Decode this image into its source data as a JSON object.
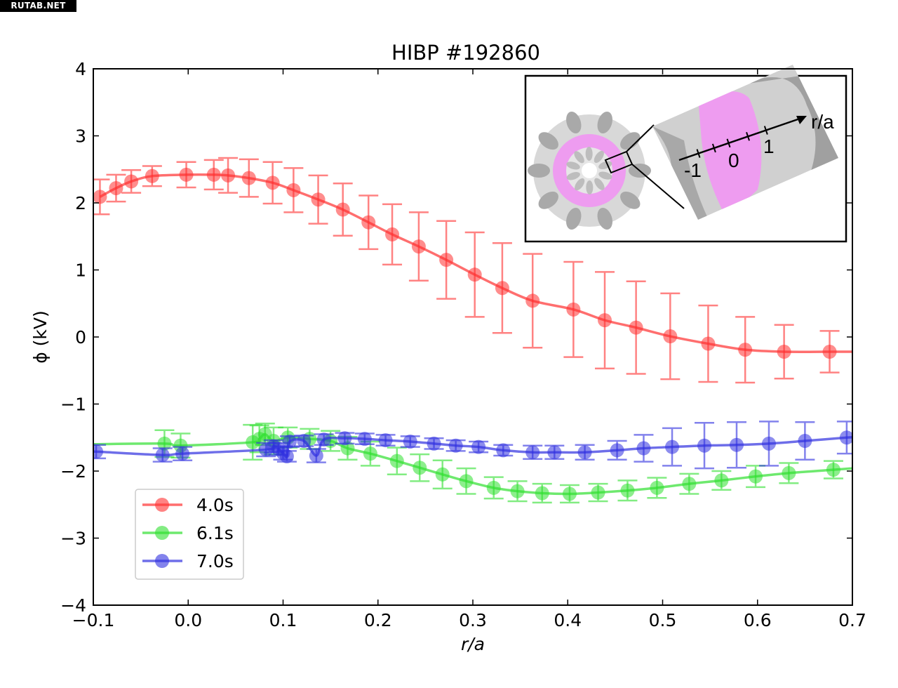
{
  "watermark": "RUTAB.NET",
  "chart_data": {
    "type": "line",
    "title": "HIBP #192860",
    "xlabel": "r/a",
    "ylabel": "ϕ (kV)",
    "xlim": [
      -0.1,
      0.7
    ],
    "ylim": [
      -4,
      4
    ],
    "xticks": [
      -0.1,
      0.0,
      0.1,
      0.2,
      0.3,
      0.4,
      0.5,
      0.6,
      0.7
    ],
    "xtick_labels": [
      "−0.1",
      "0.0",
      "0.1",
      "0.2",
      "0.3",
      "0.4",
      "0.5",
      "0.6",
      "0.7"
    ],
    "yticks": [
      -4,
      -3,
      -2,
      -1,
      0,
      1,
      2,
      3,
      4
    ],
    "ytick_labels": [
      "−4",
      "−3",
      "−2",
      "−1",
      "0",
      "1",
      "2",
      "3",
      "4"
    ],
    "grid": false,
    "legend_position": "lower-left",
    "series": [
      {
        "name": "4.0s",
        "color": "#ff3030",
        "points": [
          {
            "x": -0.093,
            "y": 2.09,
            "err": 0.26
          },
          {
            "x": -0.076,
            "y": 2.22,
            "err": 0.2
          },
          {
            "x": -0.06,
            "y": 2.32,
            "err": 0.17
          },
          {
            "x": -0.038,
            "y": 2.4,
            "err": 0.15
          },
          {
            "x": -0.002,
            "y": 2.42,
            "err": 0.19
          },
          {
            "x": 0.027,
            "y": 2.42,
            "err": 0.22
          },
          {
            "x": 0.042,
            "y": 2.41,
            "err": 0.26
          },
          {
            "x": 0.064,
            "y": 2.37,
            "err": 0.28
          },
          {
            "x": 0.089,
            "y": 2.3,
            "err": 0.31
          },
          {
            "x": 0.111,
            "y": 2.19,
            "err": 0.33
          },
          {
            "x": 0.137,
            "y": 2.05,
            "err": 0.36
          },
          {
            "x": 0.163,
            "y": 1.9,
            "err": 0.39
          },
          {
            "x": 0.19,
            "y": 1.71,
            "err": 0.4
          },
          {
            "x": 0.215,
            "y": 1.53,
            "err": 0.45
          },
          {
            "x": 0.243,
            "y": 1.35,
            "err": 0.51
          },
          {
            "x": 0.272,
            "y": 1.15,
            "err": 0.58
          },
          {
            "x": 0.302,
            "y": 0.93,
            "err": 0.63
          },
          {
            "x": 0.331,
            "y": 0.73,
            "err": 0.67
          },
          {
            "x": 0.363,
            "y": 0.54,
            "err": 0.7
          },
          {
            "x": 0.406,
            "y": 0.41,
            "err": 0.71
          },
          {
            "x": 0.439,
            "y": 0.25,
            "err": 0.72
          },
          {
            "x": 0.472,
            "y": 0.14,
            "err": 0.69
          },
          {
            "x": 0.508,
            "y": 0.01,
            "err": 0.64
          },
          {
            "x": 0.548,
            "y": -0.1,
            "err": 0.57
          },
          {
            "x": 0.587,
            "y": -0.19,
            "err": 0.49
          },
          {
            "x": 0.628,
            "y": -0.22,
            "err": 0.4
          },
          {
            "x": 0.676,
            "y": -0.22,
            "err": 0.31
          }
        ],
        "curve_end": {
          "x": 0.7,
          "y": -0.22
        }
      },
      {
        "name": "6.1s",
        "color": "#30e030",
        "points": [
          {
            "x": -0.025,
            "y": -1.59,
            "err": 0.2
          },
          {
            "x": -0.008,
            "y": -1.62,
            "err": 0.18
          },
          {
            "x": 0.068,
            "y": -1.57,
            "err": 0.26
          },
          {
            "x": 0.075,
            "y": -1.52,
            "err": 0.2
          },
          {
            "x": 0.081,
            "y": -1.45,
            "err": 0.16
          },
          {
            "x": 0.09,
            "y": -1.55,
            "err": 0.2
          },
          {
            "x": 0.105,
            "y": -1.5,
            "err": 0.15
          },
          {
            "x": 0.128,
            "y": -1.52,
            "err": 0.15
          },
          {
            "x": 0.15,
            "y": -1.55,
            "err": 0.15
          },
          {
            "x": 0.168,
            "y": -1.66,
            "err": 0.17
          },
          {
            "x": 0.192,
            "y": -1.74,
            "err": 0.18
          },
          {
            "x": 0.22,
            "y": -1.85,
            "err": 0.2
          },
          {
            "x": 0.244,
            "y": -1.95,
            "err": 0.2
          },
          {
            "x": 0.268,
            "y": -2.05,
            "err": 0.21
          },
          {
            "x": 0.293,
            "y": -2.15,
            "err": 0.19
          },
          {
            "x": 0.322,
            "y": -2.25,
            "err": 0.16
          },
          {
            "x": 0.347,
            "y": -2.3,
            "err": 0.15
          },
          {
            "x": 0.373,
            "y": -2.33,
            "err": 0.14
          },
          {
            "x": 0.402,
            "y": -2.34,
            "err": 0.13
          },
          {
            "x": 0.432,
            "y": -2.32,
            "err": 0.13
          },
          {
            "x": 0.463,
            "y": -2.29,
            "err": 0.15
          },
          {
            "x": 0.494,
            "y": -2.25,
            "err": 0.15
          },
          {
            "x": 0.528,
            "y": -2.19,
            "err": 0.15
          },
          {
            "x": 0.562,
            "y": -2.14,
            "err": 0.14
          },
          {
            "x": 0.598,
            "y": -2.08,
            "err": 0.16
          },
          {
            "x": 0.633,
            "y": -2.03,
            "err": 0.15
          },
          {
            "x": 0.68,
            "y": -1.98,
            "err": 0.13
          }
        ],
        "curve_start": {
          "x": -0.1,
          "y": -1.6
        },
        "curve_end": {
          "x": 0.7,
          "y": -1.96
        }
      },
      {
        "name": "7.0s",
        "color": "#3030e0",
        "points": [
          {
            "x": -0.097,
            "y": -1.71,
            "err": 0.1
          },
          {
            "x": -0.027,
            "y": -1.76,
            "err": 0.1
          },
          {
            "x": -0.006,
            "y": -1.74,
            "err": 0.1
          },
          {
            "x": 0.082,
            "y": -1.68,
            "err": 0.1
          },
          {
            "x": 0.09,
            "y": -1.63,
            "err": 0.09
          },
          {
            "x": 0.095,
            "y": -1.67,
            "err": 0.09
          },
          {
            "x": 0.1,
            "y": -1.73,
            "err": 0.1
          },
          {
            "x": 0.104,
            "y": -1.78,
            "err": 0.08
          },
          {
            "x": 0.107,
            "y": -1.56,
            "err": 0.08
          },
          {
            "x": 0.122,
            "y": -1.55,
            "err": 0.08
          },
          {
            "x": 0.135,
            "y": -1.77,
            "err": 0.1
          },
          {
            "x": 0.143,
            "y": -1.53,
            "err": 0.08
          },
          {
            "x": 0.165,
            "y": -1.51,
            "err": 0.08
          },
          {
            "x": 0.186,
            "y": -1.52,
            "err": 0.08
          },
          {
            "x": 0.208,
            "y": -1.54,
            "err": 0.08
          },
          {
            "x": 0.234,
            "y": -1.56,
            "err": 0.08
          },
          {
            "x": 0.259,
            "y": -1.59,
            "err": 0.08
          },
          {
            "x": 0.282,
            "y": -1.62,
            "err": 0.08
          },
          {
            "x": 0.306,
            "y": -1.64,
            "err": 0.08
          },
          {
            "x": 0.332,
            "y": -1.69,
            "err": 0.08
          },
          {
            "x": 0.363,
            "y": -1.72,
            "err": 0.1
          },
          {
            "x": 0.386,
            "y": -1.72,
            "err": 0.1
          },
          {
            "x": 0.418,
            "y": -1.72,
            "err": 0.11
          },
          {
            "x": 0.452,
            "y": -1.69,
            "err": 0.14
          },
          {
            "x": 0.48,
            "y": -1.66,
            "err": 0.2
          },
          {
            "x": 0.51,
            "y": -1.64,
            "err": 0.28
          },
          {
            "x": 0.544,
            "y": -1.62,
            "err": 0.34
          },
          {
            "x": 0.578,
            "y": -1.61,
            "err": 0.34
          },
          {
            "x": 0.612,
            "y": -1.59,
            "err": 0.33
          },
          {
            "x": 0.65,
            "y": -1.55,
            "err": 0.28
          },
          {
            "x": 0.694,
            "y": -1.5,
            "err": 0.24
          }
        ],
        "curve_start": {
          "x": -0.1,
          "y": -1.71
        },
        "curve_end": {
          "x": 0.7,
          "y": -1.5
        }
      }
    ],
    "inset": {
      "description": "stellarator cross-section with zoomed plasma region",
      "axis_label": "r/a",
      "axis_tick_labels": [
        "-1",
        "0",
        "1"
      ],
      "plasma_color": "#ef9ef0",
      "vessel_color": "#c8c8c8"
    }
  }
}
